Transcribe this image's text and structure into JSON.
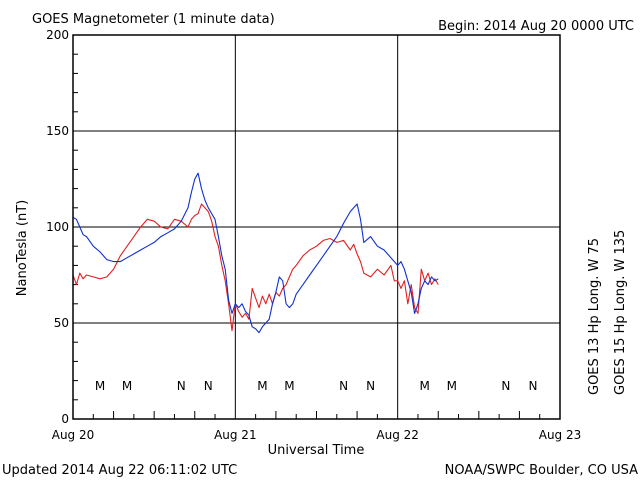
{
  "header": {
    "title": "GOES Magnetometer (1 minute data)",
    "begin": "Begin:  2014 Aug 20 0000 UTC"
  },
  "footer": {
    "updated": "Updated 2014 Aug 22 06:11:02 UTC",
    "source": "NOAA/SWPC Boulder, CO USA"
  },
  "colors": {
    "goes13": "#e02020",
    "goes15": "#1030d0",
    "frame": "#000000"
  },
  "chart_data": {
    "type": "line",
    "title": "GOES Magnetometer (1 minute data)",
    "xlabel": "Universal Time",
    "ylabel": "NanoTesla (nT)",
    "xlim": [
      0,
      72
    ],
    "ylim": [
      0,
      200
    ],
    "x_unit": "hours since 2014 Aug 20 0000 UTC",
    "yticks": [
      0,
      50,
      100,
      150,
      200
    ],
    "xticks": [
      {
        "x": 0,
        "label": "Aug 20"
      },
      {
        "x": 24,
        "label": "Aug 21"
      },
      {
        "x": 48,
        "label": "Aug 22"
      },
      {
        "x": 72,
        "label": "Aug 23"
      }
    ],
    "grid": true,
    "series": [
      {
        "name": "GOES 13 Hp  Long. W 75",
        "color": "#e02020",
        "x": [
          0,
          0.5,
          1,
          1.5,
          2,
          3,
          4,
          5,
          6,
          7,
          8,
          9,
          10,
          11,
          12,
          13,
          14,
          15,
          16,
          17,
          17.5,
          18,
          18.5,
          19,
          19.5,
          20,
          20.5,
          21,
          21.5,
          22,
          22.5,
          23,
          23.5,
          24,
          24.5,
          25,
          25.5,
          26,
          26.5,
          27,
          27.5,
          28,
          28.5,
          29,
          29.5,
          30,
          30.5,
          31,
          31.5,
          32,
          32.5,
          33,
          34,
          35,
          36,
          37,
          38,
          39,
          40,
          41,
          41.5,
          42,
          42.5,
          43,
          44,
          45,
          46,
          47,
          47.5,
          48,
          48.5,
          49,
          49.5,
          50,
          50.5,
          51,
          51.5,
          52,
          52.5,
          53,
          53.5,
          54
        ],
        "y": [
          75,
          70,
          76,
          73,
          75,
          74,
          73,
          74,
          78,
          85,
          90,
          95,
          100,
          104,
          103,
          100,
          99,
          104,
          103,
          100,
          104,
          106,
          107,
          112,
          110,
          108,
          103,
          95,
          90,
          80,
          72,
          60,
          46,
          60,
          56,
          53,
          55,
          52,
          68,
          63,
          58,
          64,
          60,
          65,
          60,
          66,
          64,
          68,
          70,
          74,
          78,
          80,
          85,
          88,
          90,
          93,
          94,
          92,
          93,
          88,
          91,
          86,
          82,
          76,
          74,
          78,
          75,
          80,
          72,
          72,
          68,
          72,
          60,
          70,
          58,
          55,
          78,
          72,
          76,
          70,
          73,
          70
        ],
        "markers": [
          {
            "x": 4,
            "label": "M"
          },
          {
            "x": 16,
            "label": "N"
          },
          {
            "x": 28,
            "label": "M"
          },
          {
            "x": 40,
            "label": "N"
          },
          {
            "x": 52,
            "label": "M"
          },
          {
            "x": 64,
            "label": "N"
          }
        ]
      },
      {
        "name": "GOES 15 Hp  Long. W 135",
        "color": "#1030d0",
        "x": [
          0,
          0.5,
          1,
          1.5,
          2,
          3,
          4,
          5,
          6,
          7,
          8,
          9,
          10,
          11,
          12,
          13,
          14,
          15,
          16,
          17,
          17.5,
          18,
          18.5,
          19,
          19.5,
          20,
          20.5,
          21,
          21.5,
          22,
          22.5,
          23,
          23.5,
          24,
          24.5,
          25,
          25.5,
          26,
          26.5,
          27,
          27.5,
          28,
          28.5,
          29,
          29.5,
          30,
          30.5,
          31,
          31.5,
          32,
          32.5,
          33,
          34,
          35,
          36,
          37,
          38,
          39,
          40,
          41,
          41.5,
          42,
          42.5,
          43,
          44,
          45,
          46,
          47,
          47.5,
          48,
          48.5,
          49,
          49.5,
          50,
          50.5,
          51,
          51.5,
          52,
          52.5,
          53,
          53.5,
          54
        ],
        "y": [
          105,
          104,
          100,
          96,
          95,
          90,
          87,
          83,
          82,
          82,
          84,
          86,
          88,
          90,
          92,
          95,
          97,
          99,
          103,
          110,
          118,
          125,
          128,
          120,
          114,
          110,
          107,
          104,
          95,
          85,
          78,
          62,
          55,
          60,
          58,
          60,
          56,
          54,
          48,
          47,
          45,
          48,
          50,
          52,
          60,
          66,
          74,
          72,
          60,
          58,
          60,
          65,
          70,
          75,
          80,
          85,
          90,
          95,
          102,
          108,
          110,
          112,
          104,
          92,
          95,
          90,
          88,
          84,
          82,
          80,
          82,
          78,
          72,
          66,
          55,
          60,
          68,
          72,
          70,
          74,
          72,
          73
        ],
        "markers": [
          {
            "x": 8,
            "label": "M"
          },
          {
            "x": 20,
            "label": "N"
          },
          {
            "x": 32,
            "label": "M"
          },
          {
            "x": 44,
            "label": "N"
          },
          {
            "x": 56,
            "label": "M"
          },
          {
            "x": 68,
            "label": "N"
          }
        ]
      }
    ]
  }
}
